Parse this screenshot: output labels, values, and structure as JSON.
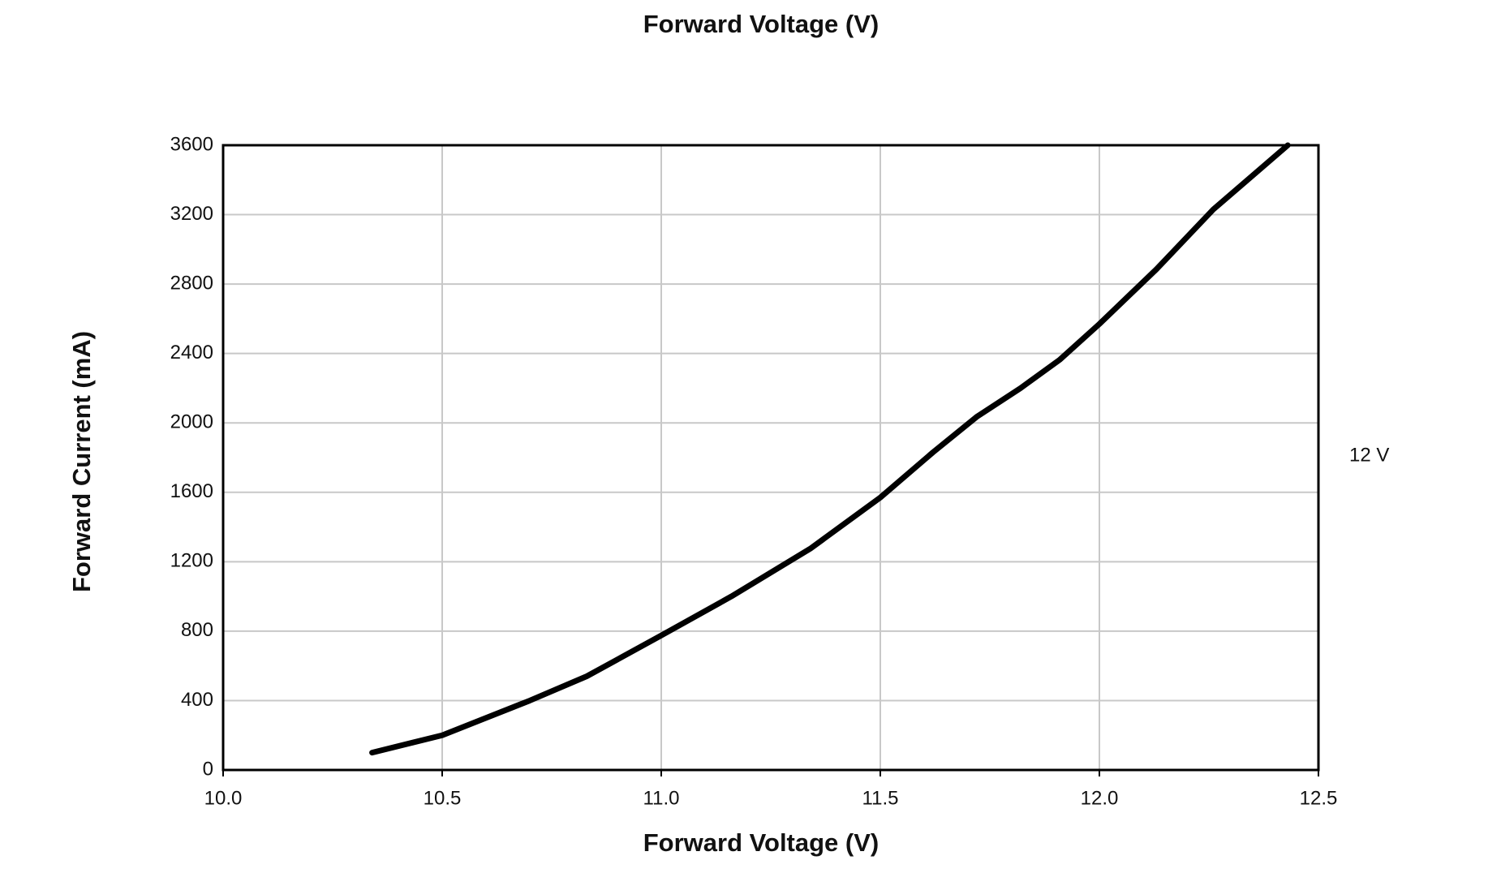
{
  "chart_data": {
    "type": "line",
    "title": "Forward Voltage (V)",
    "x_label": "Forward Voltage (V)",
    "y_label": "Forward Current (mA)",
    "x": [
      10.34,
      10.5,
      10.7,
      10.83,
      11.0,
      11.16,
      11.34,
      11.5,
      11.62,
      11.72,
      11.82,
      11.91,
      12.0,
      12.13,
      12.26,
      12.43
    ],
    "series": [
      {
        "name": "12 V",
        "color": "#000000",
        "values": [
          100,
          200,
          400,
          540,
          775,
          1000,
          1275,
          1570,
          1830,
          2035,
          2200,
          2365,
          2570,
          2885,
          3230,
          3600
        ]
      }
    ],
    "xlim": [
      10,
      12.5
    ],
    "xticks": [
      {
        "value": 10,
        "label": "10.0"
      },
      10.5,
      {
        "value": 11,
        "label": "11.0"
      },
      11.5,
      {
        "value": 12,
        "label": "12.0"
      },
      12.5
    ],
    "ylim": [
      0,
      3600
    ],
    "yticks": [
      0,
      400,
      800,
      1200,
      1600,
      2000,
      2400,
      2800,
      3200,
      3600
    ],
    "grid": true
  }
}
